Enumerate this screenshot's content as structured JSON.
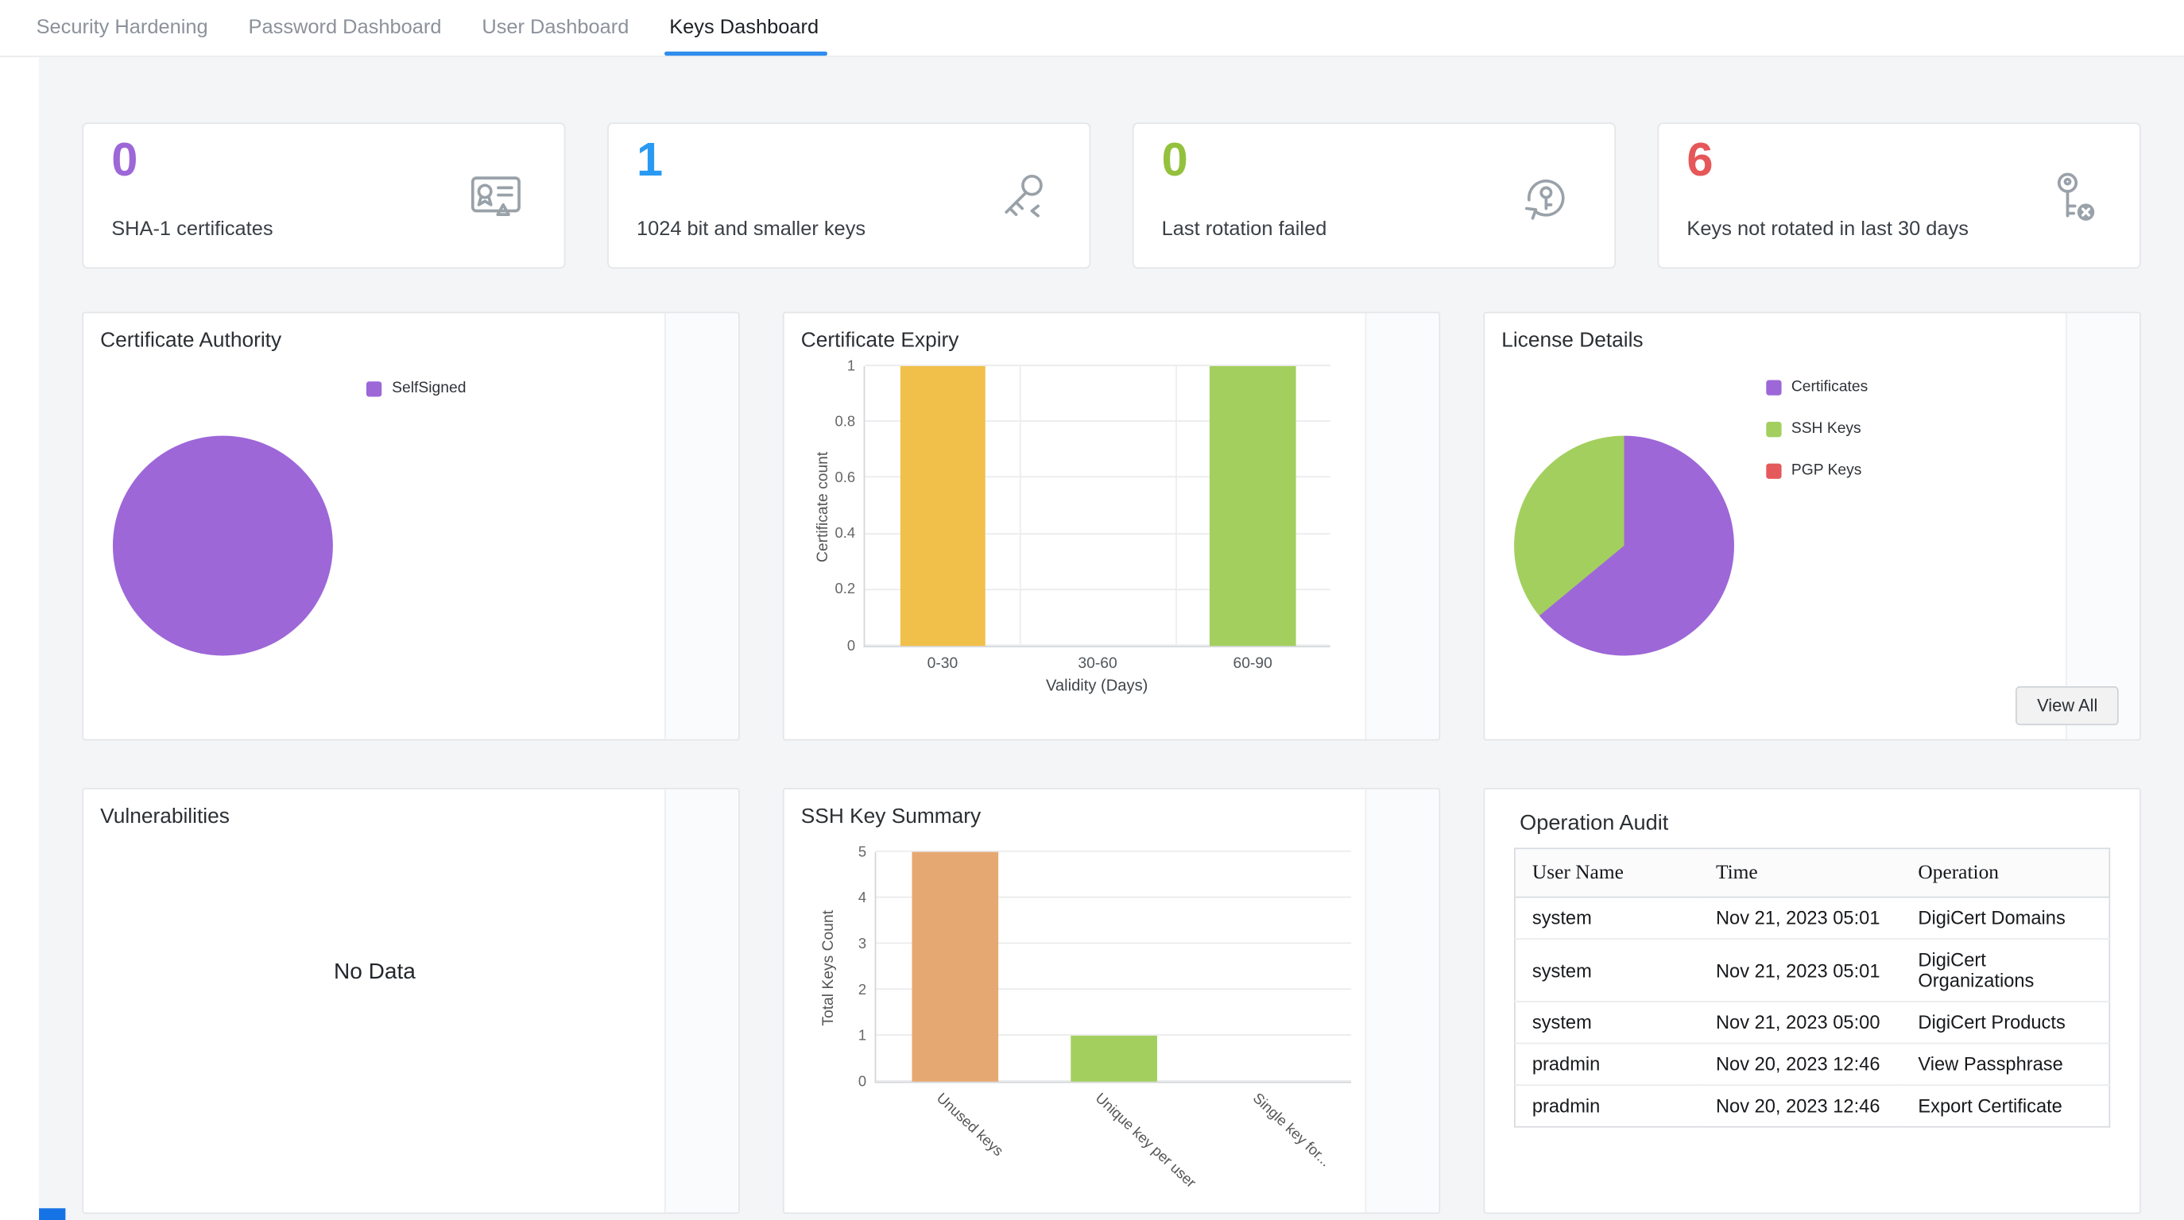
{
  "tabs": [
    {
      "label": "Security Hardening",
      "active": false
    },
    {
      "label": "Password Dashboard",
      "active": false
    },
    {
      "label": "User Dashboard",
      "active": false
    },
    {
      "label": "Keys Dashboard",
      "active": true
    }
  ],
  "theme": {
    "active_tab_underline": "#2f8ded",
    "content_background": "#f4f5f6"
  },
  "stats": [
    {
      "value": "0",
      "label": "SHA-1 certificates",
      "color": "#9d67d8",
      "icon": "certificate-warning-icon"
    },
    {
      "value": "1",
      "label": "1024 bit and smaller keys",
      "color": "#299af3",
      "icon": "small-key-icon"
    },
    {
      "value": "0",
      "label": "Last rotation failed",
      "color": "#94c13d",
      "icon": "key-rotation-failed-icon"
    },
    {
      "value": "6",
      "label": "Keys not rotated in last 30 days",
      "color": "#e65759",
      "icon": "key-not-rotated-icon"
    }
  ],
  "panels": {
    "certificate_authority": {
      "title": "Certificate Authority"
    },
    "certificate_expiry": {
      "title": "Certificate Expiry"
    },
    "license_details": {
      "title": "License Details",
      "view_all_label": "View All"
    },
    "vulnerabilities": {
      "title": "Vulnerabilities",
      "empty_text": "No Data"
    },
    "ssh_key_summary": {
      "title": "SSH Key Summary"
    },
    "operation_audit": {
      "title": "Operation Audit"
    }
  },
  "chart_data": [
    {
      "id": "certificate_authority",
      "type": "pie",
      "title": "Certificate Authority",
      "legend_position": "top",
      "legend": [
        {
          "label": "SelfSigned",
          "color": "#9d67d8"
        }
      ],
      "slices": [
        {
          "label": "SelfSigned",
          "pct": 100,
          "color": "#9d67d8"
        }
      ]
    },
    {
      "id": "certificate_expiry",
      "type": "bar",
      "title": "Certificate Expiry",
      "categories": [
        "0-30",
        "30-60",
        "60-90"
      ],
      "values": [
        1,
        0,
        1
      ],
      "bar_colors": [
        "#f0c04a",
        "#f0c04a",
        "#a3cf5f"
      ],
      "ylabel": "Certificate count",
      "xlabel": "Validity (Days)",
      "ylim": [
        0,
        1
      ],
      "yticks": [
        0,
        0.2,
        0.4,
        0.6,
        0.8,
        1
      ],
      "vgrid": true,
      "grid": true
    },
    {
      "id": "license_details",
      "type": "pie",
      "title": "License Details",
      "legend_position": "right",
      "legend": [
        {
          "label": "Certificates",
          "color": "#9d67d8"
        },
        {
          "label": "SSH Keys",
          "color": "#a3cf5f"
        },
        {
          "label": "PGP Keys",
          "color": "#e4595c"
        }
      ],
      "slices": [
        {
          "label": "Certificates",
          "pct": 64,
          "color": "#9d67d8"
        },
        {
          "label": "SSH Keys",
          "pct": 36,
          "color": "#a3cf5f"
        },
        {
          "label": "PGP Keys",
          "pct": 0,
          "color": "#e4595c"
        }
      ]
    },
    {
      "id": "ssh_key_summary",
      "type": "bar",
      "title": "SSH Key Summary",
      "categories": [
        "Unused keys",
        "Unique key per user",
        "Single key for..."
      ],
      "values": [
        5,
        1,
        0
      ],
      "bar_colors": [
        "#e6a873",
        "#a3cf5f",
        "#a3cf5f"
      ],
      "ylabel": "Total Keys Count",
      "xlabel": "",
      "ylim": [
        0,
        5
      ],
      "yticks": [
        0,
        1,
        2,
        3,
        4,
        5
      ],
      "rotate_x_labels": 43,
      "vgrid": false,
      "grid": true
    }
  ],
  "operation_audit": {
    "headers": [
      "User Name",
      "Time",
      "Operation"
    ],
    "rows": [
      [
        "system",
        "Nov 21, 2023 05:01",
        "DigiCert Domains"
      ],
      [
        "system",
        "Nov 21, 2023 05:01",
        "DigiCert Organizations"
      ],
      [
        "system",
        "Nov 21, 2023 05:00",
        "DigiCert Products"
      ],
      [
        "pradmin",
        "Nov 20, 2023 12:46",
        "View Passphrase"
      ],
      [
        "pradmin",
        "Nov 20, 2023 12:46",
        "Export Certificate"
      ]
    ]
  }
}
